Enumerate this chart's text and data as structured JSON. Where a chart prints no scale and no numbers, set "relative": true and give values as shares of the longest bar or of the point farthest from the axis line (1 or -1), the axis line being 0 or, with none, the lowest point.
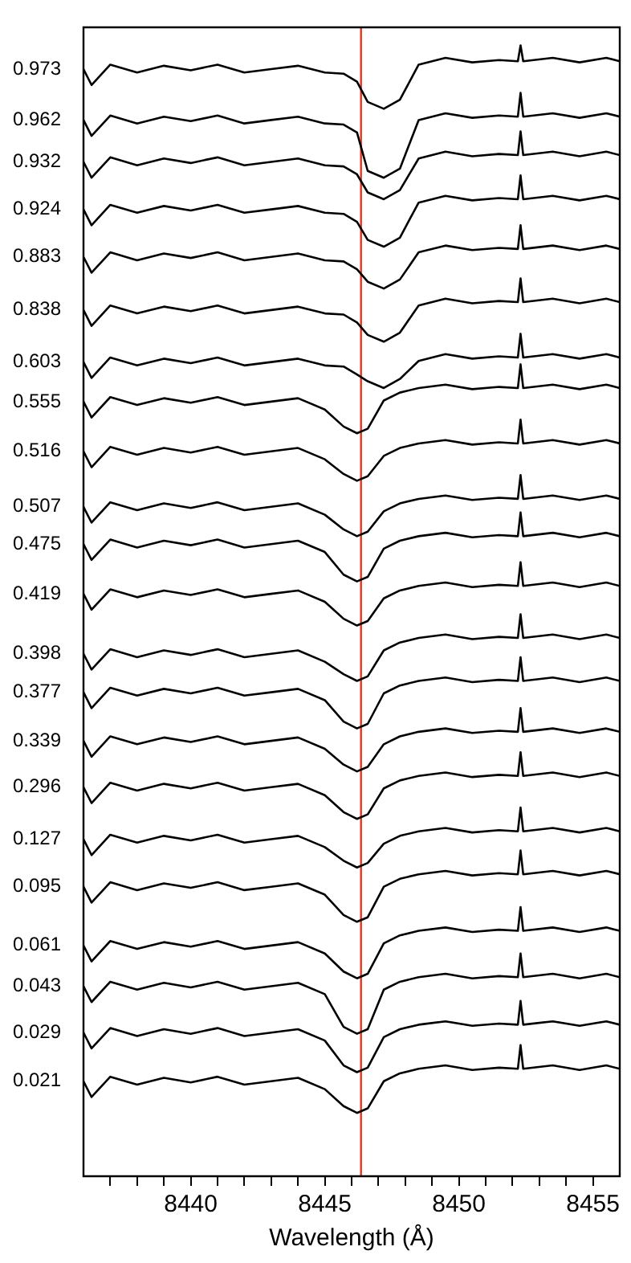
{
  "chart_data": {
    "type": "line",
    "relative": true,
    "xlabel": "Wavelength (Å)",
    "xlim": [
      8436,
      8456
    ],
    "xticks": [
      {
        "value": 8437,
        "label": null
      },
      {
        "value": 8438,
        "label": null
      },
      {
        "value": 8439,
        "label": null
      },
      8440,
      {
        "value": 8441,
        "label": null
      },
      {
        "value": 8442,
        "label": null
      },
      {
        "value": 8443,
        "label": null
      },
      {
        "value": 8444,
        "label": null
      },
      8445,
      {
        "value": 8446,
        "label": null
      },
      {
        "value": 8447,
        "label": null
      },
      {
        "value": 8448,
        "label": null
      },
      {
        "value": 8449,
        "label": null
      },
      8450,
      {
        "value": 8451,
        "label": null
      },
      {
        "value": 8452,
        "label": null
      },
      {
        "value": 8453,
        "label": null
      },
      {
        "value": 8454,
        "label": null
      },
      8455
    ],
    "tick_labels": "x",
    "grid": false,
    "legend": false,
    "marker": "none",
    "line_style": "solid",
    "ref_lines": [
      {
        "axis": "x",
        "value": 8446.35,
        "color": "#e8331c"
      }
    ],
    "x": [
      8436.0,
      8436.3,
      8437.0,
      8438.0,
      8439.0,
      8440.0,
      8441.0,
      8442.0,
      8443.0,
      8444.0,
      8445.0,
      8445.7,
      8446.2,
      8446.6,
      8447.2,
      8447.8,
      8448.5,
      8449.5,
      8450.5,
      8451.5,
      8452.2,
      8452.3,
      8452.4,
      8453.5,
      8454.5,
      8455.5,
      8456.0
    ],
    "series": [
      {
        "name": "0.973",
        "color": "#000000",
        "values": [
          0.979,
          0.965,
          0.983,
          0.976,
          0.982,
          0.978,
          0.983,
          0.976,
          0.979,
          0.982,
          0.976,
          0.975,
          0.968,
          0.95,
          0.944,
          0.952,
          0.983,
          0.989,
          0.985,
          0.987,
          0.986,
          1.0,
          0.986,
          0.989,
          0.985,
          0.989,
          0.986
        ]
      },
      {
        "name": "0.962",
        "color": "#000000",
        "values": [
          0.934,
          0.92,
          0.938,
          0.931,
          0.937,
          0.933,
          0.938,
          0.931,
          0.934,
          0.937,
          0.931,
          0.93,
          0.923,
          0.889,
          0.883,
          0.891,
          0.934,
          0.94,
          0.936,
          0.938,
          0.937,
          0.958,
          0.937,
          0.94,
          0.936,
          0.94,
          0.937
        ]
      },
      {
        "name": "0.932",
        "color": "#000000",
        "values": [
          0.897,
          0.883,
          0.901,
          0.894,
          0.9,
          0.896,
          0.901,
          0.894,
          0.897,
          0.9,
          0.894,
          0.893,
          0.886,
          0.87,
          0.864,
          0.872,
          0.9,
          0.906,
          0.902,
          0.904,
          0.903,
          0.924,
          0.903,
          0.906,
          0.902,
          0.906,
          0.903
        ]
      },
      {
        "name": "0.924",
        "color": "#000000",
        "values": [
          0.855,
          0.841,
          0.859,
          0.852,
          0.858,
          0.854,
          0.859,
          0.852,
          0.855,
          0.858,
          0.852,
          0.851,
          0.844,
          0.828,
          0.822,
          0.83,
          0.861,
          0.867,
          0.863,
          0.865,
          0.864,
          0.885,
          0.864,
          0.867,
          0.863,
          0.867,
          0.864
        ]
      },
      {
        "name": "0.883",
        "color": "#000000",
        "values": [
          0.813,
          0.799,
          0.817,
          0.81,
          0.816,
          0.812,
          0.817,
          0.81,
          0.813,
          0.816,
          0.81,
          0.809,
          0.802,
          0.791,
          0.785,
          0.793,
          0.817,
          0.823,
          0.819,
          0.821,
          0.82,
          0.841,
          0.82,
          0.823,
          0.819,
          0.823,
          0.82
        ]
      },
      {
        "name": "0.838",
        "color": "#000000",
        "values": [
          0.766,
          0.752,
          0.77,
          0.763,
          0.769,
          0.765,
          0.77,
          0.763,
          0.766,
          0.769,
          0.763,
          0.762,
          0.755,
          0.744,
          0.738,
          0.746,
          0.77,
          0.776,
          0.772,
          0.774,
          0.773,
          0.794,
          0.773,
          0.776,
          0.772,
          0.776,
          0.773
        ]
      },
      {
        "name": "0.603",
        "color": "#000000",
        "values": [
          0.72,
          0.706,
          0.724,
          0.717,
          0.723,
          0.719,
          0.724,
          0.717,
          0.72,
          0.723,
          0.717,
          0.716,
          0.709,
          0.703,
          0.697,
          0.705,
          0.721,
          0.727,
          0.723,
          0.725,
          0.724,
          0.745,
          0.724,
          0.727,
          0.723,
          0.727,
          0.724
        ]
      },
      {
        "name": "0.555",
        "color": "#000000",
        "values": [
          0.685,
          0.671,
          0.689,
          0.682,
          0.688,
          0.684,
          0.689,
          0.682,
          0.685,
          0.688,
          0.678,
          0.663,
          0.657,
          0.661,
          0.686,
          0.693,
          0.697,
          0.7,
          0.696,
          0.698,
          0.697,
          0.718,
          0.697,
          0.7,
          0.696,
          0.7,
          0.697
        ]
      },
      {
        "name": "0.516",
        "color": "#000000",
        "values": [
          0.641,
          0.627,
          0.645,
          0.638,
          0.644,
          0.64,
          0.645,
          0.638,
          0.641,
          0.644,
          0.634,
          0.621,
          0.615,
          0.619,
          0.637,
          0.644,
          0.648,
          0.651,
          0.647,
          0.649,
          0.648,
          0.669,
          0.648,
          0.651,
          0.647,
          0.651,
          0.648
        ]
      },
      {
        "name": "0.507",
        "color": "#000000",
        "values": [
          0.592,
          0.578,
          0.596,
          0.589,
          0.595,
          0.591,
          0.596,
          0.589,
          0.592,
          0.595,
          0.585,
          0.572,
          0.566,
          0.57,
          0.588,
          0.595,
          0.599,
          0.602,
          0.598,
          0.6,
          0.599,
          0.62,
          0.599,
          0.602,
          0.598,
          0.602,
          0.599
        ]
      },
      {
        "name": "0.475",
        "color": "#000000",
        "values": [
          0.559,
          0.545,
          0.563,
          0.556,
          0.562,
          0.558,
          0.563,
          0.556,
          0.559,
          0.562,
          0.552,
          0.532,
          0.526,
          0.53,
          0.555,
          0.562,
          0.566,
          0.569,
          0.565,
          0.567,
          0.566,
          0.587,
          0.566,
          0.569,
          0.565,
          0.569,
          0.566
        ]
      },
      {
        "name": "0.419",
        "color": "#000000",
        "values": [
          0.515,
          0.501,
          0.519,
          0.512,
          0.518,
          0.514,
          0.519,
          0.512,
          0.515,
          0.518,
          0.508,
          0.493,
          0.487,
          0.491,
          0.511,
          0.518,
          0.522,
          0.525,
          0.521,
          0.523,
          0.522,
          0.543,
          0.522,
          0.525,
          0.521,
          0.525,
          0.522
        ]
      },
      {
        "name": "0.398",
        "color": "#000000",
        "values": [
          0.462,
          0.448,
          0.466,
          0.459,
          0.465,
          0.461,
          0.466,
          0.459,
          0.462,
          0.465,
          0.455,
          0.444,
          0.438,
          0.442,
          0.465,
          0.472,
          0.476,
          0.479,
          0.475,
          0.477,
          0.476,
          0.497,
          0.476,
          0.479,
          0.475,
          0.479,
          0.476
        ]
      },
      {
        "name": "0.377",
        "color": "#000000",
        "values": [
          0.428,
          0.414,
          0.432,
          0.425,
          0.431,
          0.427,
          0.432,
          0.425,
          0.428,
          0.431,
          0.421,
          0.402,
          0.396,
          0.4,
          0.427,
          0.434,
          0.438,
          0.441,
          0.437,
          0.439,
          0.438,
          0.459,
          0.438,
          0.441,
          0.437,
          0.441,
          0.438
        ]
      },
      {
        "name": "0.339",
        "color": "#000000",
        "values": [
          0.385,
          0.371,
          0.389,
          0.382,
          0.388,
          0.384,
          0.389,
          0.382,
          0.385,
          0.388,
          0.378,
          0.364,
          0.358,
          0.362,
          0.382,
          0.389,
          0.393,
          0.396,
          0.392,
          0.394,
          0.393,
          0.414,
          0.393,
          0.396,
          0.392,
          0.396,
          0.393
        ]
      },
      {
        "name": "0.296",
        "color": "#000000",
        "values": [
          0.344,
          0.33,
          0.348,
          0.341,
          0.347,
          0.343,
          0.348,
          0.341,
          0.344,
          0.347,
          0.337,
          0.322,
          0.316,
          0.32,
          0.343,
          0.35,
          0.354,
          0.357,
          0.353,
          0.355,
          0.354,
          0.375,
          0.354,
          0.357,
          0.353,
          0.357,
          0.354
        ]
      },
      {
        "name": "0.127",
        "color": "#000000",
        "values": [
          0.298,
          0.284,
          0.302,
          0.295,
          0.301,
          0.297,
          0.302,
          0.295,
          0.298,
          0.301,
          0.291,
          0.279,
          0.273,
          0.277,
          0.294,
          0.301,
          0.305,
          0.308,
          0.304,
          0.306,
          0.305,
          0.326,
          0.305,
          0.308,
          0.304,
          0.308,
          0.305
        ]
      },
      {
        "name": "0.095",
        "color": "#000000",
        "values": [
          0.256,
          0.242,
          0.26,
          0.253,
          0.259,
          0.255,
          0.26,
          0.253,
          0.256,
          0.259,
          0.249,
          0.231,
          0.225,
          0.229,
          0.256,
          0.263,
          0.267,
          0.27,
          0.266,
          0.268,
          0.267,
          0.288,
          0.267,
          0.27,
          0.266,
          0.27,
          0.267
        ]
      },
      {
        "name": "0.061",
        "color": "#000000",
        "values": [
          0.204,
          0.19,
          0.208,
          0.201,
          0.207,
          0.203,
          0.208,
          0.201,
          0.204,
          0.207,
          0.197,
          0.181,
          0.175,
          0.179,
          0.206,
          0.213,
          0.217,
          0.22,
          0.216,
          0.218,
          0.217,
          0.238,
          0.217,
          0.22,
          0.216,
          0.22,
          0.217
        ]
      },
      {
        "name": "0.043",
        "color": "#000000",
        "values": [
          0.168,
          0.154,
          0.172,
          0.165,
          0.171,
          0.167,
          0.172,
          0.165,
          0.168,
          0.171,
          0.161,
          0.132,
          0.126,
          0.13,
          0.165,
          0.172,
          0.176,
          0.179,
          0.175,
          0.177,
          0.176,
          0.197,
          0.176,
          0.179,
          0.175,
          0.179,
          0.176
        ]
      },
      {
        "name": "0.029",
        "color": "#000000",
        "values": [
          0.127,
          0.113,
          0.131,
          0.124,
          0.13,
          0.126,
          0.131,
          0.124,
          0.127,
          0.13,
          0.12,
          0.098,
          0.092,
          0.096,
          0.123,
          0.13,
          0.134,
          0.137,
          0.133,
          0.135,
          0.134,
          0.155,
          0.134,
          0.137,
          0.133,
          0.137,
          0.134
        ]
      },
      {
        "name": "0.021",
        "color": "#000000",
        "values": [
          0.084,
          0.07,
          0.088,
          0.081,
          0.087,
          0.083,
          0.088,
          0.081,
          0.084,
          0.087,
          0.077,
          0.062,
          0.056,
          0.06,
          0.084,
          0.091,
          0.095,
          0.098,
          0.094,
          0.096,
          0.095,
          0.116,
          0.095,
          0.098,
          0.094,
          0.098,
          0.095
        ]
      }
    ]
  }
}
